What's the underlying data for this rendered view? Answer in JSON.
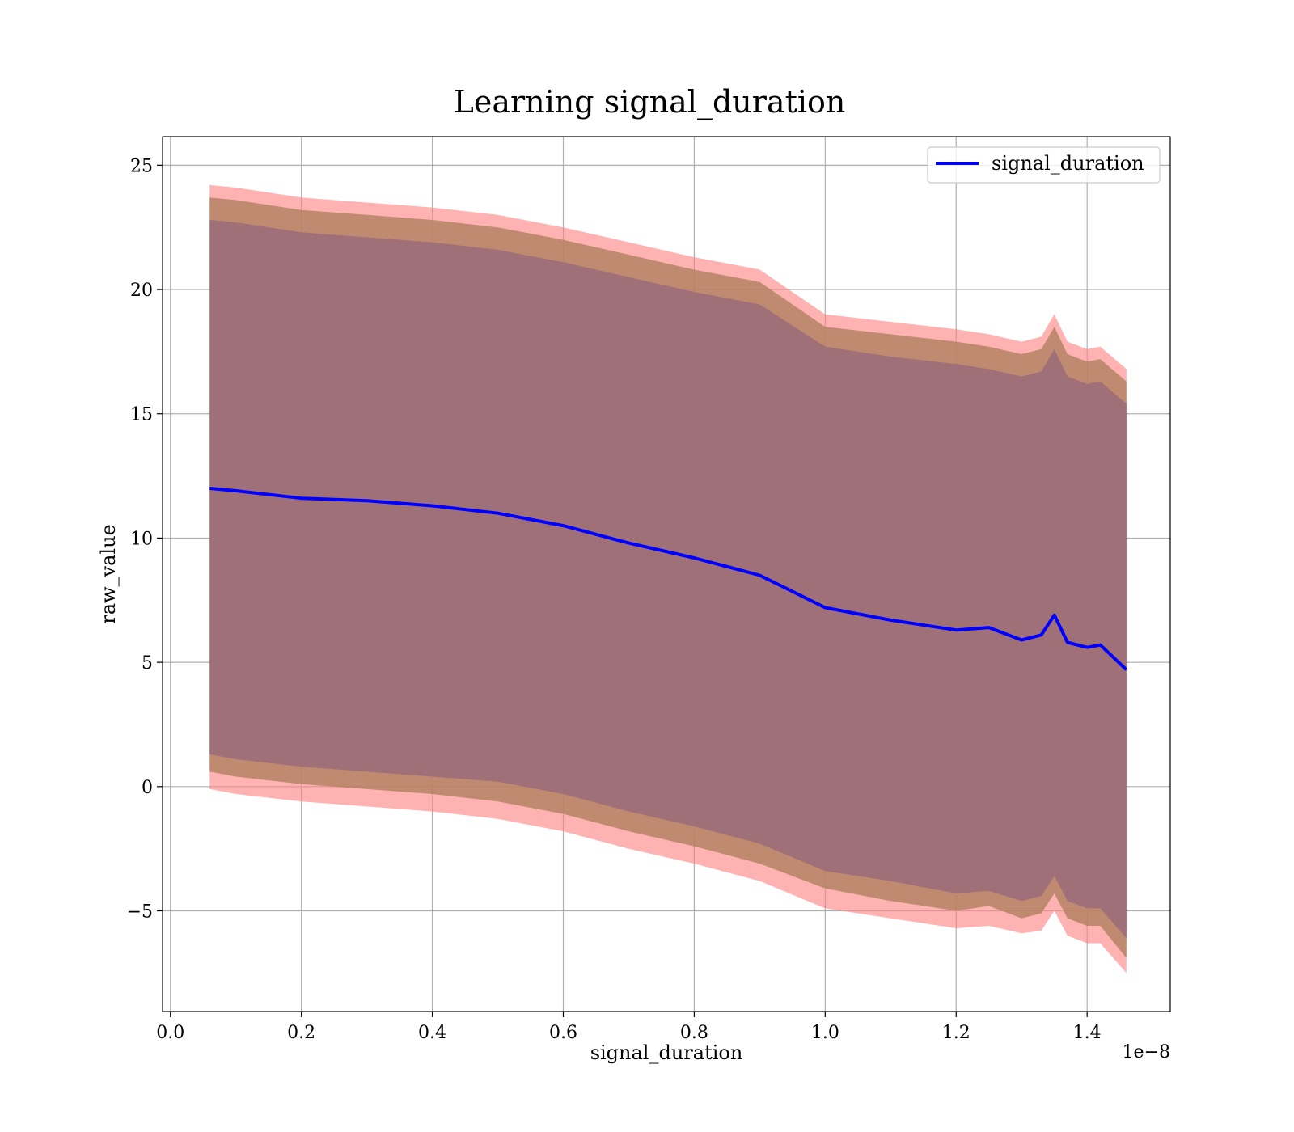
{
  "chart_data": {
    "type": "area",
    "title": "Learning signal_duration",
    "xlabel": "signal_duration",
    "ylabel": "raw_value",
    "x_offset_label": "1e−8",
    "x_scale": 1e-08,
    "xlim": [
      -1.2e-10,
      1.527e-08
    ],
    "ylim": [
      -9.05,
      26.15
    ],
    "x_ticks": [
      0.0,
      0.2,
      0.4,
      0.6,
      0.8,
      1.0,
      1.2,
      1.4
    ],
    "x_tick_labels": [
      "0.0",
      "0.2",
      "0.4",
      "0.6",
      "0.8",
      "1.0",
      "1.2",
      "1.4"
    ],
    "y_ticks": [
      -5,
      0,
      5,
      10,
      15,
      20,
      25
    ],
    "y_tick_labels": [
      "−5",
      "0",
      "5",
      "10",
      "15",
      "20",
      "25"
    ],
    "grid": true,
    "legend": {
      "placement": "top-right",
      "entries": [
        "signal_duration"
      ]
    },
    "colors": {
      "mean_line": "#0000ff",
      "band_outer": "#ff7f7f",
      "band_middle": "#b08060",
      "band_inner": "#a07078"
    },
    "x": [
      6e-10,
      1e-09,
      2e-09,
      3e-09,
      4e-09,
      5e-09,
      6e-09,
      7e-09,
      8e-09,
      9e-09,
      1e-08,
      1.1e-08,
      1.2e-08,
      1.25e-08,
      1.3e-08,
      1.33e-08,
      1.35e-08,
      1.37e-08,
      1.4e-08,
      1.42e-08,
      1.46e-08
    ],
    "series": [
      {
        "name": "signal_duration",
        "role": "mean",
        "values": [
          12.0,
          11.9,
          11.6,
          11.5,
          11.3,
          11.0,
          10.5,
          9.8,
          9.2,
          8.5,
          7.2,
          6.7,
          6.3,
          6.4,
          5.9,
          6.1,
          6.9,
          5.8,
          5.6,
          5.7,
          4.7
        ]
      },
      {
        "role": "band_outer_upper",
        "values": [
          24.2,
          24.1,
          23.7,
          23.5,
          23.3,
          23.0,
          22.5,
          21.9,
          21.3,
          20.8,
          19.0,
          18.7,
          18.4,
          18.2,
          17.9,
          18.1,
          19.0,
          17.9,
          17.6,
          17.7,
          16.8
        ]
      },
      {
        "role": "band_middle_upper",
        "values": [
          23.7,
          23.6,
          23.2,
          23.0,
          22.8,
          22.5,
          22.0,
          21.4,
          20.8,
          20.3,
          18.5,
          18.2,
          17.9,
          17.7,
          17.4,
          17.6,
          18.5,
          17.4,
          17.1,
          17.2,
          16.3
        ]
      },
      {
        "role": "band_inner_upper",
        "values": [
          22.8,
          22.7,
          22.3,
          22.1,
          21.9,
          21.6,
          21.1,
          20.5,
          19.9,
          19.4,
          17.7,
          17.3,
          17.0,
          16.8,
          16.5,
          16.7,
          17.6,
          16.5,
          16.2,
          16.3,
          15.4
        ]
      },
      {
        "role": "band_inner_lower",
        "values": [
          1.3,
          1.1,
          0.8,
          0.6,
          0.4,
          0.2,
          -0.3,
          -1.0,
          -1.6,
          -2.3,
          -3.4,
          -3.8,
          -4.3,
          -4.2,
          -4.6,
          -4.4,
          -3.6,
          -4.6,
          -4.9,
          -4.9,
          -6.1
        ]
      },
      {
        "role": "band_middle_lower",
        "values": [
          0.6,
          0.4,
          0.1,
          -0.1,
          -0.3,
          -0.6,
          -1.1,
          -1.8,
          -2.4,
          -3.1,
          -4.1,
          -4.6,
          -5.0,
          -4.8,
          -5.3,
          -5.1,
          -4.3,
          -5.3,
          -5.6,
          -5.6,
          -6.9
        ]
      },
      {
        "role": "band_outer_lower",
        "values": [
          -0.1,
          -0.3,
          -0.6,
          -0.8,
          -1.0,
          -1.3,
          -1.8,
          -2.5,
          -3.1,
          -3.8,
          -4.9,
          -5.3,
          -5.7,
          -5.6,
          -5.9,
          -5.8,
          -5.0,
          -6.0,
          -6.3,
          -6.3,
          -7.5
        ]
      }
    ]
  }
}
